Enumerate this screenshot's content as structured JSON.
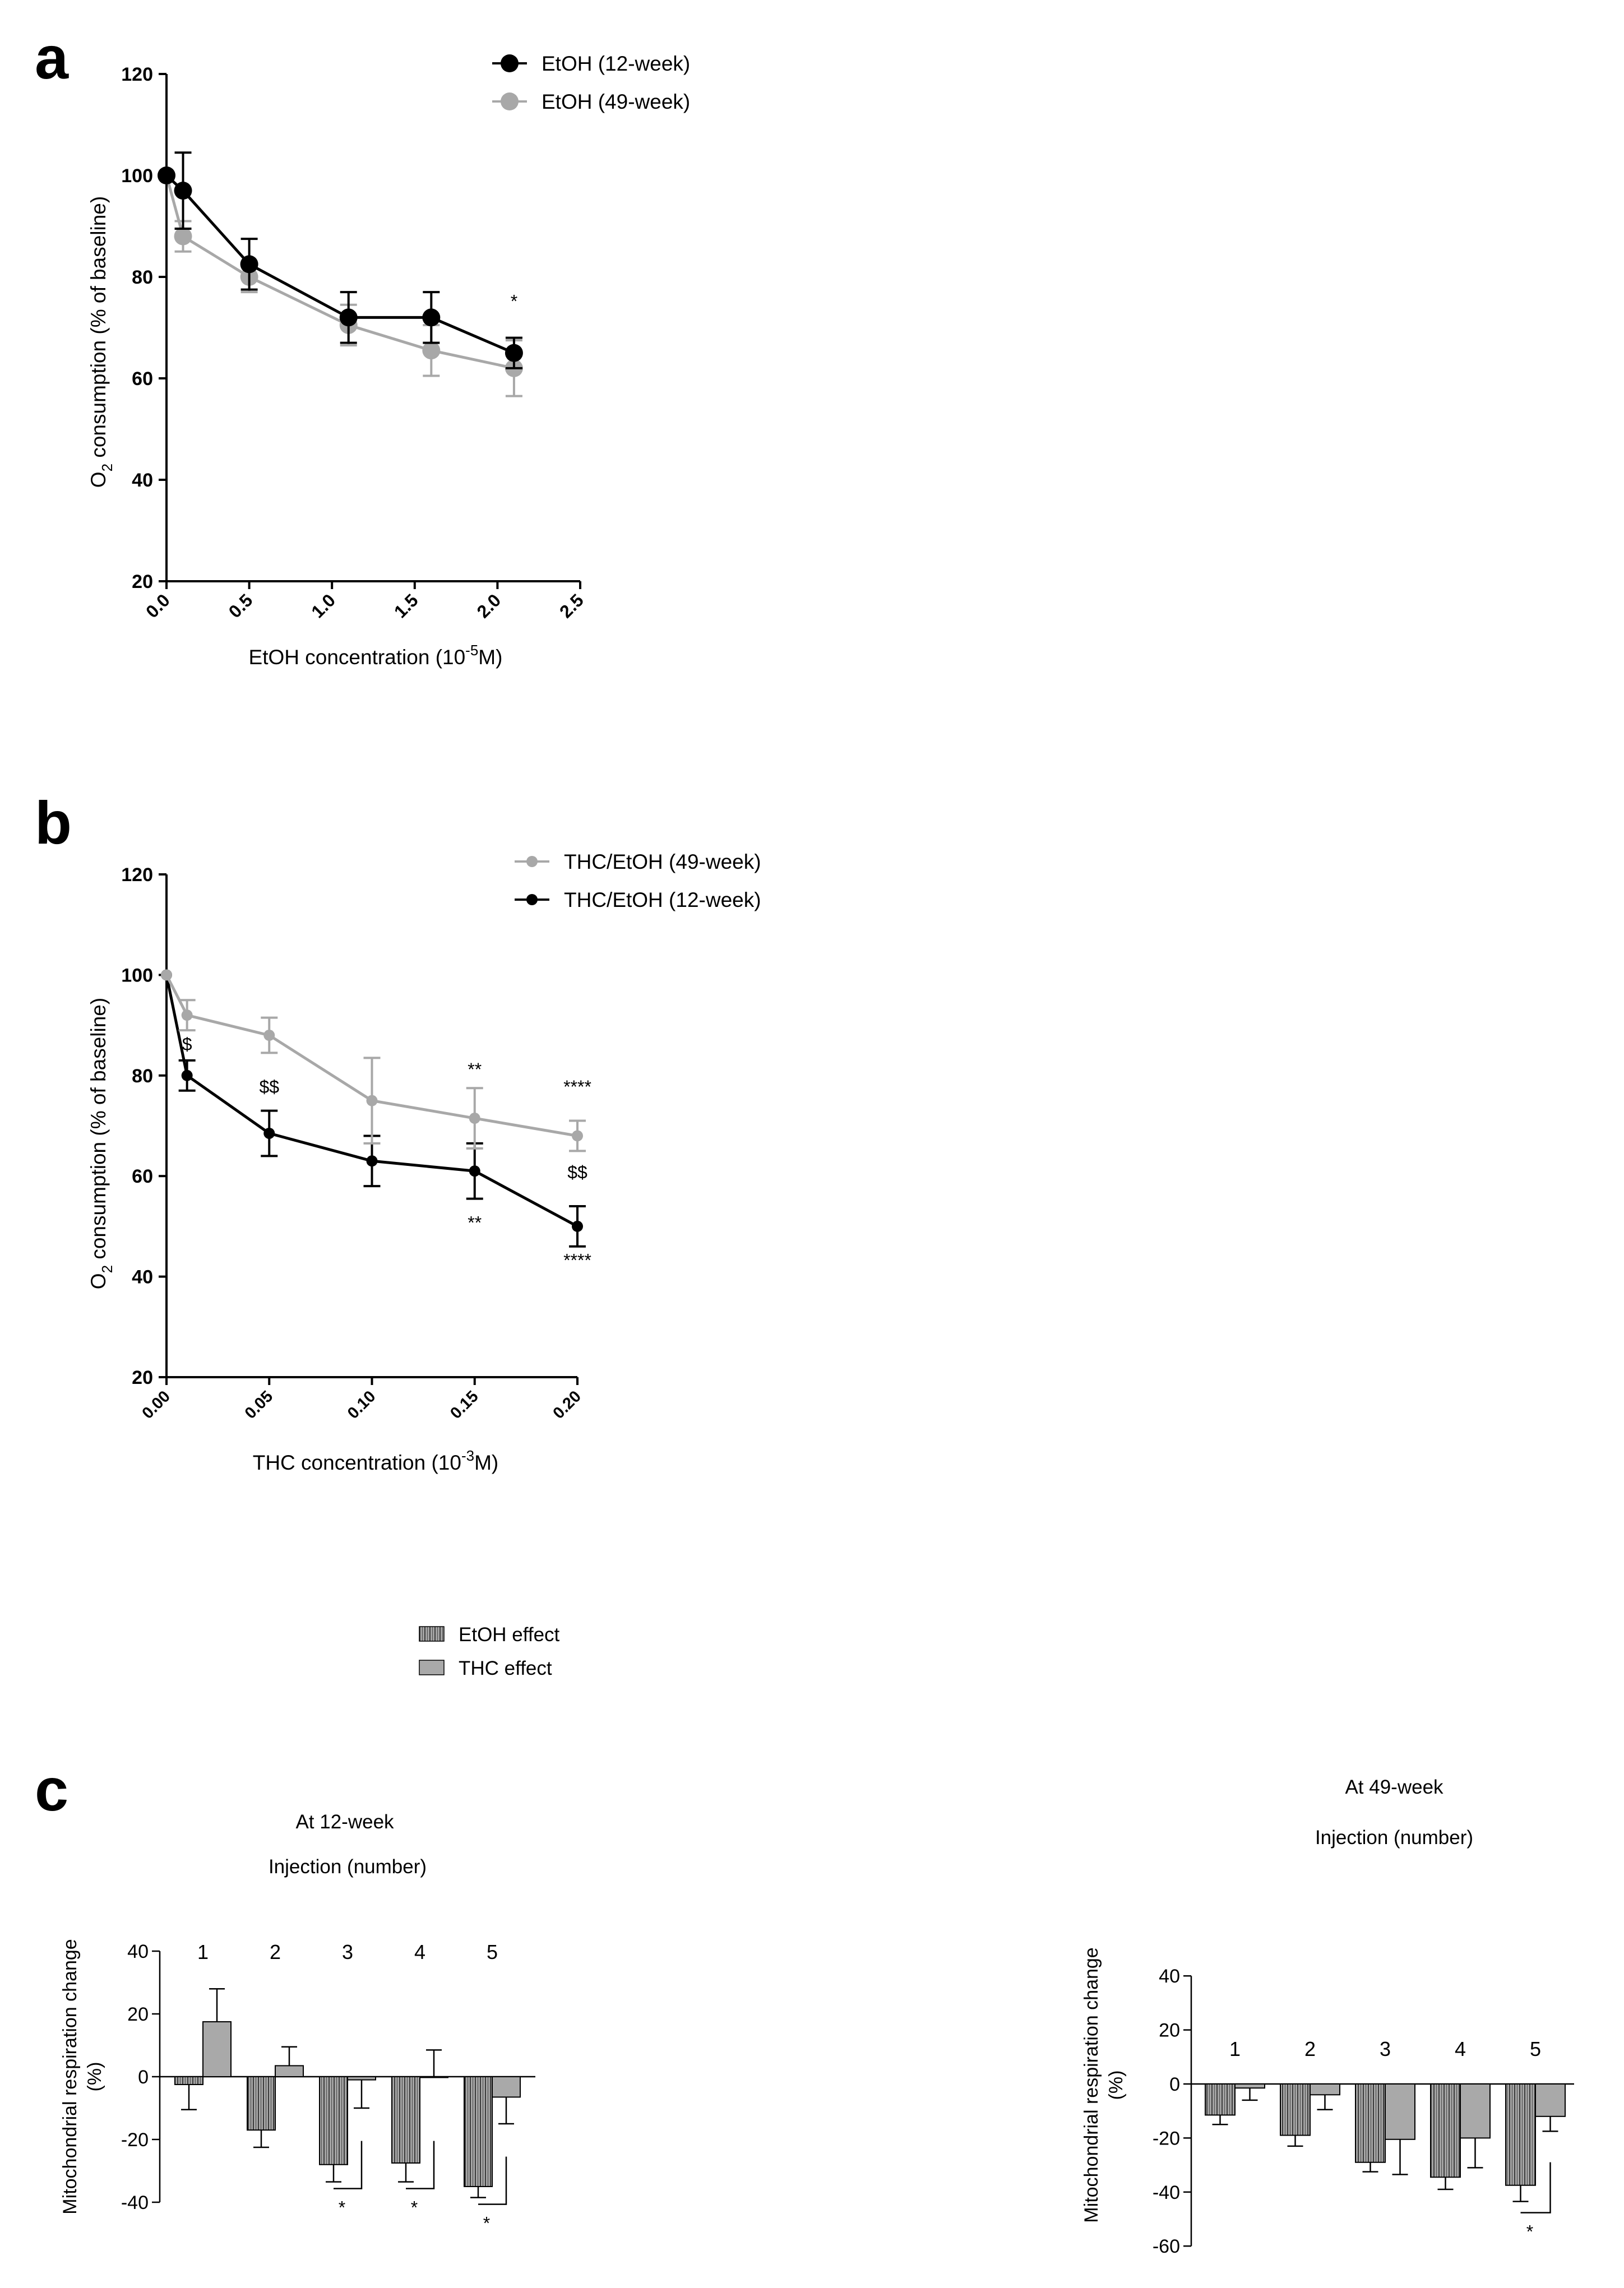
{
  "colors": {
    "black": "#000000",
    "gray": "#a8a8a8",
    "bar_fill": "#a9a9a9",
    "hatch_line": "#3a3a3a"
  },
  "chart_data": [
    {
      "panel": "a",
      "type": "line",
      "xlabel_prefix": "EtOH concentration (10",
      "xlabel_sup": "-5",
      "xlabel_suffix": "M)",
      "ylabel_main": "O",
      "ylabel_sub": "2",
      "ylabel_rest": " consumption (% of baseline)",
      "xlim": [
        0,
        2.5
      ],
      "ylim": [
        20,
        120
      ],
      "xticks": [
        "0.0",
        "0.5",
        "1.0",
        "1.5",
        "2.0",
        "2.5"
      ],
      "yticks": [
        "20",
        "40",
        "60",
        "80",
        "100",
        "120"
      ],
      "legend_position": "top-right",
      "series": [
        {
          "name": "EtOH (12-week)",
          "color": "#000000",
          "x": [
            0,
            0.1,
            0.5,
            1.1,
            1.6,
            2.1
          ],
          "y": [
            100,
            97,
            82.5,
            72,
            72,
            65
          ],
          "err": [
            0,
            7.5,
            5,
            5,
            5,
            3
          ]
        },
        {
          "name": "EtOH (49-week)",
          "color": "#a8a8a8",
          "x": [
            0,
            0.1,
            0.5,
            1.1,
            1.6,
            2.1
          ],
          "y": [
            100,
            88,
            80,
            70.5,
            65.5,
            62
          ],
          "err": [
            0,
            3,
            3,
            4,
            5,
            5.5
          ]
        }
      ],
      "annotations": [
        {
          "text": "*",
          "x": 2.1,
          "y": 74
        }
      ]
    },
    {
      "panel": "b",
      "type": "line",
      "xlabel_prefix": "THC concentration (10",
      "xlabel_sup": "-3",
      "xlabel_suffix": "M)",
      "ylabel_main": "O",
      "ylabel_sub": "2",
      "ylabel_rest": " consumption (% of baseline)",
      "xlim": [
        0,
        0.2
      ],
      "ylim": [
        20,
        120
      ],
      "xticks": [
        "0.00",
        "0.05",
        "0.10",
        "0.15",
        "0.20"
      ],
      "yticks": [
        "20",
        "40",
        "60",
        "80",
        "100",
        "120"
      ],
      "legend_position": "top-right",
      "series": [
        {
          "name": "THC/EtOH (49-week)",
          "color": "#a8a8a8",
          "x": [
            0,
            0.01,
            0.05,
            0.1,
            0.15,
            0.2
          ],
          "y": [
            100,
            92,
            88,
            75,
            71.5,
            68
          ],
          "err": [
            0,
            3,
            3.5,
            8.5,
            6,
            3
          ]
        },
        {
          "name": "THC/EtOH (12-week)",
          "color": "#000000",
          "x": [
            0,
            0.01,
            0.05,
            0.1,
            0.15,
            0.2
          ],
          "y": [
            100,
            80,
            68.5,
            63,
            61,
            50
          ],
          "err": [
            0,
            3,
            4.5,
            5,
            5.5,
            4
          ]
        }
      ],
      "annotations": [
        {
          "text": "$",
          "x": 0.01,
          "y": 85
        },
        {
          "text": "$$",
          "x": 0.05,
          "y": 76.5
        },
        {
          "text": "**",
          "x": 0.15,
          "y": 80
        },
        {
          "text": "****",
          "x": 0.2,
          "y": 76.5
        },
        {
          "text": "$$",
          "x": 0.2,
          "y": 59.5
        },
        {
          "text": "**",
          "x": 0.15,
          "y": 49.5
        },
        {
          "text": "****",
          "x": 0.2,
          "y": 42
        }
      ]
    },
    {
      "panel": "c-left",
      "type": "bar",
      "title": "At 12-week",
      "subtitle": "Injection (number)",
      "ylabel_line1": "Mitochondrial respiration change",
      "ylabel_line2": "(%)",
      "ylim": [
        -40,
        40
      ],
      "yticks": [
        "-40",
        "-20",
        "0",
        "20",
        "40"
      ],
      "categories": [
        "1",
        "2",
        "3",
        "4",
        "5"
      ],
      "series": [
        {
          "name": "EtOH effect",
          "values": [
            -2.5,
            -17,
            -28,
            -27.5,
            -35
          ],
          "err": [
            8,
            5.5,
            5.5,
            6,
            3.5
          ]
        },
        {
          "name": "THC effect",
          "values": [
            17.5,
            3.5,
            -1,
            0,
            -6.5
          ],
          "err": [
            10.5,
            6,
            9,
            8.5,
            8.5
          ]
        }
      ],
      "significance": [
        "",
        "",
        "*",
        "*",
        "*"
      ]
    },
    {
      "panel": "c-right",
      "type": "bar",
      "title": "At 49-week",
      "subtitle": "Injection (number)",
      "ylabel_line1": "Mitochondrial respiration change",
      "ylabel_line2": "(%)",
      "ylim": [
        -60,
        40
      ],
      "yticks": [
        "-60",
        "-40",
        "-20",
        "0",
        "20",
        "40"
      ],
      "categories": [
        "1",
        "2",
        "3",
        "4",
        "5"
      ],
      "series": [
        {
          "name": "EtOH effect",
          "values": [
            -11.5,
            -19,
            -29,
            -34.5,
            -37.5
          ],
          "err": [
            3.5,
            4,
            3.5,
            4.5,
            6
          ]
        },
        {
          "name": "THC effect",
          "values": [
            -1.5,
            -4,
            -20.5,
            -20,
            -12
          ],
          "err": [
            4.5,
            5.5,
            13,
            11,
            5.5
          ]
        }
      ],
      "significance": [
        "",
        "",
        "",
        "",
        "*"
      ]
    }
  ],
  "panel_labels": {
    "a": "a",
    "b": "b",
    "c": "c"
  },
  "bar_legend": {
    "items": [
      {
        "name": "EtOH effect",
        "pattern": "hatched"
      },
      {
        "name": "THC effect",
        "pattern": "solid"
      }
    ]
  }
}
